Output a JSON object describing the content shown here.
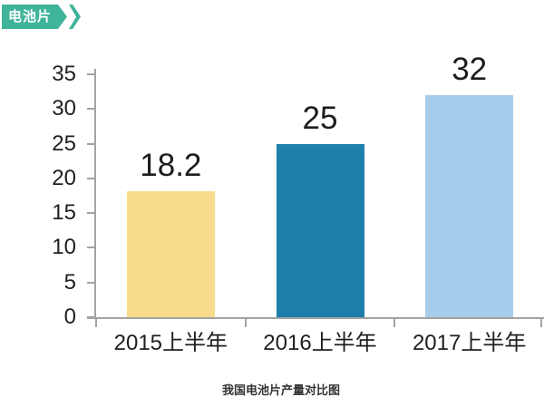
{
  "tag": {
    "label": "电池片",
    "color": "#40b49a"
  },
  "chart_data": {
    "type": "bar",
    "title": "我国电池片产量对比图",
    "categories": [
      "2015上半年",
      "2016上半年",
      "2017上半年"
    ],
    "values": [
      18.2,
      25,
      32
    ],
    "value_labels": [
      "18.2",
      "25",
      "32"
    ],
    "bar_colors": [
      "#f9dc8b",
      "#1e7fab",
      "#a6cdec"
    ],
    "ylim": [
      0,
      35
    ],
    "ytick_step": 5,
    "yticks": [
      0,
      5,
      10,
      15,
      20,
      25,
      30,
      35
    ],
    "xlabel": "",
    "ylabel": "",
    "grid": false,
    "legend": "none",
    "axis_color": "#a3a3a3",
    "label_color": "#1f1f1f"
  }
}
